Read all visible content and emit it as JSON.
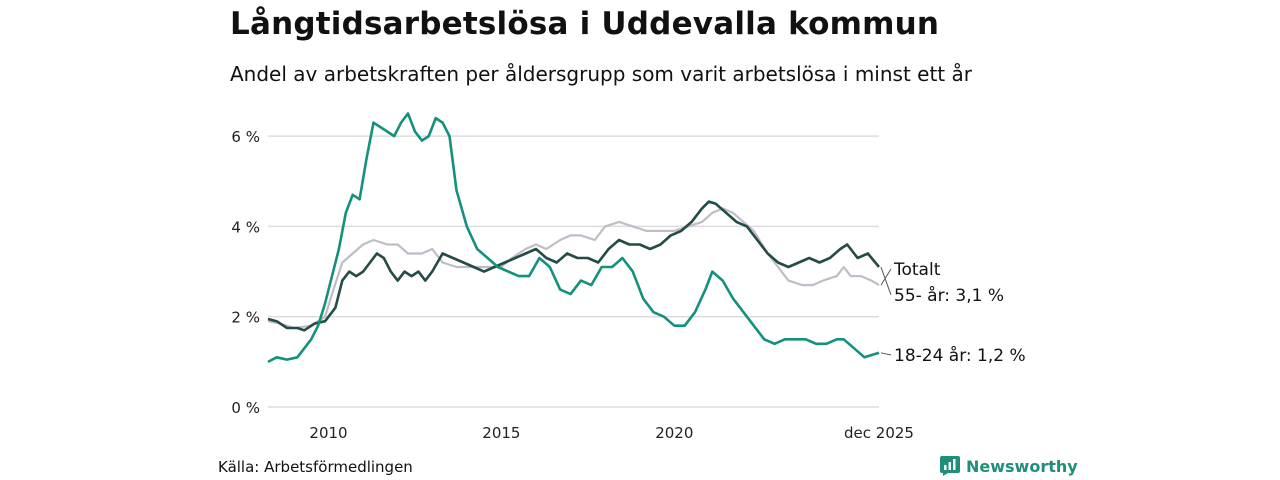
{
  "title": "Långtidsarbetslösa i Uddevalla kommun",
  "subtitle": "Andel av arbetskraften per åldersgrupp som varit arbetslösa i minst ett år",
  "source": "Källa: Arbetsförmedlingen",
  "brand": "Newsworthy",
  "colors": {
    "youth": "#14917c",
    "senior": "#244b45",
    "total": "#c0bcc8",
    "grid": "#dddddd",
    "brand": "#1f8f7a"
  },
  "chart_data": {
    "type": "line",
    "title": "Långtidsarbetslösa i Uddevalla kommun",
    "xlabel": "",
    "ylabel": "",
    "x_range": [
      2008.25,
      2025.92
    ],
    "ylim": [
      0,
      6.8
    ],
    "y_ticks": [
      {
        "value": 0,
        "label": "0 %"
      },
      {
        "value": 2,
        "label": "2 %"
      },
      {
        "value": 4,
        "label": "4 %"
      },
      {
        "value": 6,
        "label": "6 %"
      }
    ],
    "x_ticks": [
      {
        "value": 2010,
        "label": "2010"
      },
      {
        "value": 2015,
        "label": "2015"
      },
      {
        "value": 2020,
        "label": "2020"
      },
      {
        "value": 2025.92,
        "label": "dec 2025"
      }
    ],
    "grid": true,
    "series": [
      {
        "name": "Totalt",
        "color_key": "total",
        "end_label": "Totalt",
        "x": [
          2008.25,
          2008.6,
          2009.0,
          2009.5,
          2009.9,
          2010.1,
          2010.4,
          2010.7,
          2011.0,
          2011.3,
          2011.7,
          2012.0,
          2012.3,
          2012.7,
          2013.0,
          2013.3,
          2013.7,
          2014.0,
          2014.5,
          2015.0,
          2015.3,
          2015.7,
          2016.0,
          2016.3,
          2016.7,
          2017.0,
          2017.3,
          2017.7,
          2018.0,
          2018.4,
          2018.8,
          2019.2,
          2019.6,
          2020.0,
          2020.4,
          2020.8,
          2021.1,
          2021.4,
          2021.7,
          2022.0,
          2022.3,
          2022.7,
          2023.0,
          2023.3,
          2023.7,
          2024.0,
          2024.3,
          2024.7,
          2024.9,
          2025.1,
          2025.4,
          2025.7,
          2025.92
        ],
        "values": [
          1.9,
          1.85,
          1.75,
          1.8,
          2.0,
          2.5,
          3.2,
          3.4,
          3.6,
          3.7,
          3.6,
          3.6,
          3.4,
          3.4,
          3.5,
          3.2,
          3.1,
          3.1,
          3.1,
          3.1,
          3.3,
          3.5,
          3.6,
          3.5,
          3.7,
          3.8,
          3.8,
          3.7,
          4.0,
          4.1,
          4.0,
          3.9,
          3.9,
          3.9,
          4.0,
          4.1,
          4.3,
          4.4,
          4.3,
          4.1,
          3.9,
          3.4,
          3.1,
          2.8,
          2.7,
          2.7,
          2.8,
          2.9,
          3.1,
          2.9,
          2.9,
          2.8,
          2.7
        ]
      },
      {
        "name": "55- år",
        "color_key": "senior",
        "end_label": "55- år: 3,1 %",
        "x": [
          2008.25,
          2008.5,
          2008.8,
          2009.1,
          2009.3,
          2009.6,
          2009.9,
          2010.2,
          2010.4,
          2010.6,
          2010.8,
          2011.0,
          2011.2,
          2011.4,
          2011.6,
          2011.8,
          2012.0,
          2012.2,
          2012.4,
          2012.6,
          2012.8,
          2013.0,
          2013.3,
          2013.6,
          2013.9,
          2014.2,
          2014.5,
          2014.8,
          2015.1,
          2015.4,
          2015.7,
          2016.0,
          2016.3,
          2016.6,
          2016.9,
          2017.2,
          2017.5,
          2017.8,
          2018.1,
          2018.4,
          2018.7,
          2019.0,
          2019.3,
          2019.6,
          2019.9,
          2020.2,
          2020.5,
          2020.8,
          2021.0,
          2021.2,
          2021.5,
          2021.8,
          2022.1,
          2022.4,
          2022.7,
          2023.0,
          2023.3,
          2023.6,
          2023.9,
          2024.2,
          2024.5,
          2024.8,
          2025.0,
          2025.3,
          2025.6,
          2025.92
        ],
        "values": [
          1.95,
          1.9,
          1.75,
          1.75,
          1.7,
          1.85,
          1.9,
          2.2,
          2.8,
          3.0,
          2.9,
          3.0,
          3.2,
          3.4,
          3.3,
          3.0,
          2.8,
          3.0,
          2.9,
          3.0,
          2.8,
          3.0,
          3.4,
          3.3,
          3.2,
          3.1,
          3.0,
          3.1,
          3.2,
          3.3,
          3.4,
          3.5,
          3.3,
          3.2,
          3.4,
          3.3,
          3.3,
          3.2,
          3.5,
          3.7,
          3.6,
          3.6,
          3.5,
          3.6,
          3.8,
          3.9,
          4.1,
          4.4,
          4.55,
          4.5,
          4.3,
          4.1,
          4.0,
          3.7,
          3.4,
          3.2,
          3.1,
          3.2,
          3.3,
          3.2,
          3.3,
          3.5,
          3.6,
          3.3,
          3.4,
          3.1
        ]
      },
      {
        "name": "18-24 år",
        "color_key": "youth",
        "end_label": "18-24 år: 1,2 %",
        "x": [
          2008.25,
          2008.5,
          2008.8,
          2009.1,
          2009.3,
          2009.5,
          2009.7,
          2009.9,
          2010.1,
          2010.3,
          2010.5,
          2010.7,
          2010.9,
          2011.1,
          2011.3,
          2011.5,
          2011.7,
          2011.9,
          2012.1,
          2012.3,
          2012.5,
          2012.7,
          2012.9,
          2013.1,
          2013.3,
          2013.5,
          2013.7,
          2014.0,
          2014.3,
          2014.6,
          2014.9,
          2015.2,
          2015.5,
          2015.8,
          2016.1,
          2016.4,
          2016.7,
          2017.0,
          2017.3,
          2017.6,
          2017.9,
          2018.2,
          2018.5,
          2018.8,
          2019.1,
          2019.4,
          2019.7,
          2020.0,
          2020.3,
          2020.6,
          2020.9,
          2021.1,
          2021.4,
          2021.7,
          2022.0,
          2022.3,
          2022.6,
          2022.9,
          2023.2,
          2023.5,
          2023.8,
          2024.1,
          2024.4,
          2024.7,
          2024.9,
          2025.2,
          2025.5,
          2025.92
        ],
        "values": [
          1.0,
          1.1,
          1.05,
          1.1,
          1.3,
          1.5,
          1.8,
          2.3,
          2.9,
          3.5,
          4.3,
          4.7,
          4.6,
          5.5,
          6.3,
          6.2,
          6.1,
          6.0,
          6.3,
          6.5,
          6.1,
          5.9,
          6.0,
          6.4,
          6.3,
          6.0,
          4.8,
          4.0,
          3.5,
          3.3,
          3.1,
          3.0,
          2.9,
          2.9,
          3.3,
          3.1,
          2.6,
          2.5,
          2.8,
          2.7,
          3.1,
          3.1,
          3.3,
          3.0,
          2.4,
          2.1,
          2.0,
          1.8,
          1.8,
          2.1,
          2.6,
          3.0,
          2.8,
          2.4,
          2.1,
          1.8,
          1.5,
          1.4,
          1.5,
          1.5,
          1.5,
          1.4,
          1.4,
          1.5,
          1.5,
          1.3,
          1.1,
          1.2
        ]
      }
    ]
  }
}
